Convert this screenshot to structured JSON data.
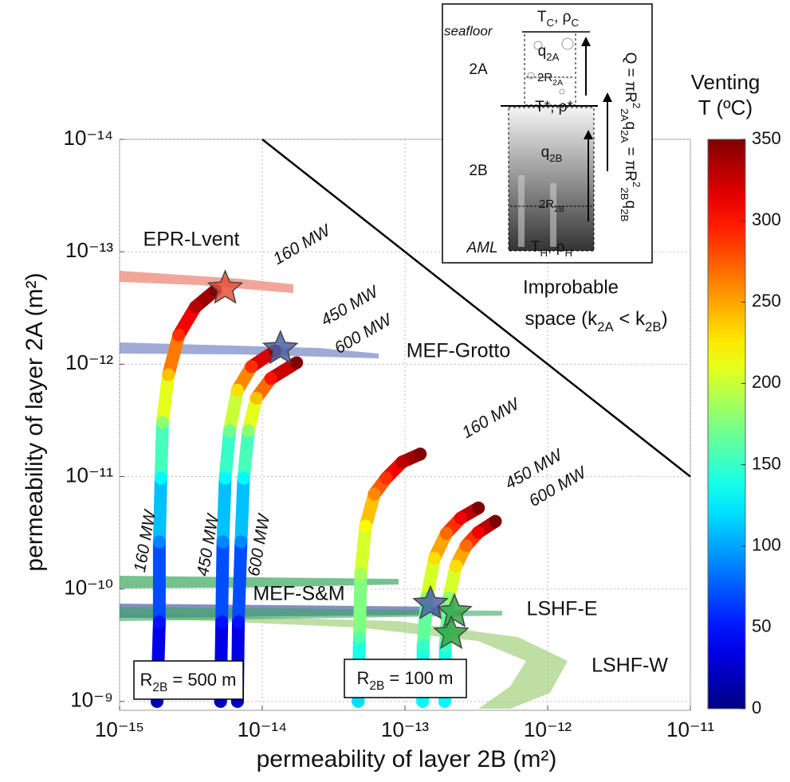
{
  "chart_data": {
    "type": "scatter",
    "xlabel": "permeability of layer 2B (m²)",
    "ylabel": "permeability of layer 2A (m²)",
    "xscale": "log",
    "yscale": "log",
    "yinvert": true,
    "xlim": [
      1e-15,
      1e-11
    ],
    "ylim": [
      1e-14,
      1.2e-09
    ],
    "xticks": [
      {
        "value": 1e-15,
        "label": "10⁻¹⁵"
      },
      {
        "value": 1e-14,
        "label": "10⁻¹⁴"
      },
      {
        "value": 1e-13,
        "label": "10⁻¹³"
      },
      {
        "value": 1e-12,
        "label": "10⁻¹²"
      },
      {
        "value": 1e-11,
        "label": "10⁻¹¹"
      }
    ],
    "yticks": [
      {
        "value": 1e-14,
        "label": "10⁻¹⁴"
      },
      {
        "value": 1e-13,
        "label": "10⁻¹³"
      },
      {
        "value": 1e-12,
        "label": "10⁻¹²"
      },
      {
        "value": 1e-11,
        "label": "10⁻¹¹"
      },
      {
        "value": 1e-10,
        "label": "10⁻¹⁰"
      },
      {
        "value": 1e-09,
        "label": "10⁻⁹"
      }
    ],
    "grid": true,
    "colormap": "jet",
    "colorbar": {
      "title": [
        "Venting",
        "T (ºC)"
      ],
      "lim": [
        0,
        350
      ],
      "ticks": [
        0,
        50,
        100,
        150,
        200,
        250,
        300,
        350
      ]
    },
    "groups": [
      {
        "label": [
          "R",
          "2B",
          " = 500 m"
        ]
      },
      {
        "label": [
          "R",
          "2B",
          " = 100 m"
        ]
      }
    ],
    "series": [
      {
        "name": "160 MW",
        "group": 0,
        "x": [
          1.83e-15,
          1.9e-15,
          1.9e-15,
          1.95e-15,
          2e-15,
          2.2e-15,
          2.6e-15,
          3.4e-15,
          4.7e-15
        ],
        "y": [
          1e-09,
          1.95e-10,
          3.8e-11,
          1.03e-11,
          3.3e-12,
          1.24e-12,
          5.5e-13,
          3.1e-13,
          2.2e-13
        ],
        "temperature": [
          20,
          50,
          90,
          130,
          180,
          240,
          290,
          330,
          350
        ]
      },
      {
        "name": "450 MW",
        "group": 0,
        "x": [
          5.1e-15,
          5.2e-15,
          5.3e-15,
          5.5e-15,
          5.9e-15,
          6.7e-15,
          8.4e-15,
          1.23e-14
        ],
        "y": [
          1e-09,
          1.95e-10,
          3.8e-11,
          1.03e-11,
          3.9e-12,
          1.7e-12,
          1.05e-12,
          7.6e-13
        ],
        "temperature": [
          20,
          50,
          90,
          130,
          170,
          230,
          290,
          350
        ]
      },
      {
        "name": "600 MW",
        "group": 0,
        "x": [
          6.7e-15,
          6.8e-15,
          7.1e-15,
          7.4e-15,
          8e-15,
          9.1e-15,
          1.15e-14,
          1.74e-14
        ],
        "y": [
          1e-09,
          1.95e-10,
          3.8e-11,
          1.03e-11,
          3.9e-12,
          2e-12,
          1.34e-12,
          9.7e-13
        ],
        "temperature": [
          20,
          50,
          90,
          130,
          180,
          240,
          300,
          350
        ]
      },
      {
        "name": "160 MW",
        "group": 1,
        "x": [
          4.7e-14,
          4.8e-14,
          4.9e-14,
          5.3e-14,
          6.1e-14,
          7.4e-14,
          9.6e-14,
          1.28e-13
        ],
        "y": [
          1e-09,
          2.7e-10,
          7.3e-11,
          2.75e-11,
          1.43e-11,
          1.03e-11,
          7.4e-12,
          6.3e-12
        ],
        "temperature": [
          120,
          160,
          190,
          220,
          260,
          290,
          330,
          350
        ]
      },
      {
        "name": "450 MW",
        "group": 1,
        "x": [
          1.33e-13,
          1.34e-13,
          1.42e-13,
          1.61e-13,
          1.95e-13,
          2.46e-13,
          3.27e-13
        ],
        "y": [
          1e-09,
          3.2e-10,
          1.2e-10,
          5.3e-11,
          3.2e-11,
          2.34e-11,
          1.9e-11
        ],
        "temperature": [
          130,
          150,
          180,
          230,
          270,
          310,
          350
        ]
      },
      {
        "name": "600 MW",
        "group": 1,
        "x": [
          1.9e-13,
          1.92e-13,
          2.03e-13,
          2.28e-13,
          2.69e-13,
          3.27e-13,
          4.3e-13
        ],
        "y": [
          1e-09,
          3.2e-10,
          1.2e-10,
          6.2e-11,
          4.1e-11,
          3.13e-11,
          2.5e-11
        ],
        "temperature": [
          130,
          150,
          180,
          230,
          270,
          310,
          350
        ]
      }
    ],
    "sites": [
      {
        "name": "EPR-Lvent",
        "color": "#e8503a",
        "x": [
          5.5e-15
        ],
        "y": [
          2.12e-13
        ]
      },
      {
        "name": "MEF-Grotto",
        "color": "#4f5fa8",
        "x": [
          1.34e-14
        ],
        "y": [
          7.3e-13
        ]
      },
      {
        "name": "MEF-S&M",
        "color": "#4f5fa8",
        "x": [
          1.51e-13
        ],
        "y": [
          1.36e-10
        ]
      },
      {
        "name": "LSHF-E",
        "color": "#35a544",
        "x": [
          2.22e-13,
          2.11e-13
        ],
        "y": [
          1.6e-10,
          2.5e-10
        ]
      },
      {
        "name": "LSHF-W",
        "color": "#8cc85a",
        "x": [],
        "y": []
      }
    ],
    "boundary": {
      "x": [
        1e-14,
        1e-11
      ],
      "y": [
        1e-14,
        1e-11
      ],
      "color": "#000000"
    },
    "boundary_label": [
      "Improbable",
      "space (k",
      "2A",
      " < k",
      "2B",
      ")"
    ]
  },
  "inset": {
    "seafloor": "seafloor",
    "top": [
      "T",
      "C",
      ", ρ",
      "C"
    ],
    "layer_a": "2A",
    "q_a": [
      "q",
      "2A"
    ],
    "r_a": [
      "2R",
      "2A"
    ],
    "mid": "T*, ρ*",
    "layer_b": "2B",
    "q_b": [
      "q",
      "2B"
    ],
    "r_b": [
      "2R",
      "2B"
    ],
    "aml": "AML",
    "bottom": [
      "T",
      "H",
      ", ρ",
      "H"
    ],
    "equation": [
      "Q = πR",
      "2",
      "2A",
      "q",
      "2A",
      " = πR",
      "2",
      "2B",
      "q",
      "2B"
    ]
  }
}
